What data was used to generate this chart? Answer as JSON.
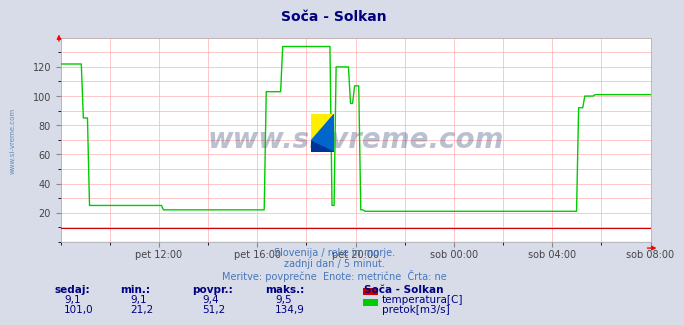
{
  "title": "Soča - Solkan",
  "title_color": "#000080",
  "bg_color": "#d8dce8",
  "plot_bg_color": "#ffffff",
  "grid_color": "#ffb0b0",
  "xlabel_ticks": [
    "pet 12:00",
    "pet 16:00",
    "pet 20:00",
    "sob 00:00",
    "sob 04:00",
    "sob 08:00"
  ],
  "ylim": [
    0,
    140
  ],
  "yticks": [
    20,
    40,
    60,
    80,
    100,
    120
  ],
  "flow_color": "#00cc00",
  "temp_color": "#cc0000",
  "purple_color": "#8800aa",
  "watermark_text": "www.si-vreme.com",
  "watermark_color": "#1a3366",
  "watermark_alpha": 0.3,
  "subtitle1": "Slovenija / reke in morje.",
  "subtitle2": "zadnji dan / 5 minut.",
  "subtitle3": "Meritve: povprečne  Enote: metrične  Črta: ne",
  "subtitle_color": "#4477bb",
  "table_headers": [
    "sedaj:",
    "min.:",
    "povpr.:",
    "maks.:"
  ],
  "table_temp": [
    "9,1",
    "9,1",
    "9,4",
    "9,5"
  ],
  "table_flow": [
    "101,0",
    "21,2",
    "51,2",
    "134,9"
  ],
  "legend_title": "Soča - Solkan",
  "legend_temp_label": "temperatura[C]",
  "legend_flow_label": "pretok[m3/s]",
  "table_color": "#000080",
  "side_label": "www.si-vreme.com",
  "side_label_color": "#4477aa",
  "icon_yellow": "#ffee00",
  "icon_blue": "#0066cc",
  "icon_dark": "#003399"
}
